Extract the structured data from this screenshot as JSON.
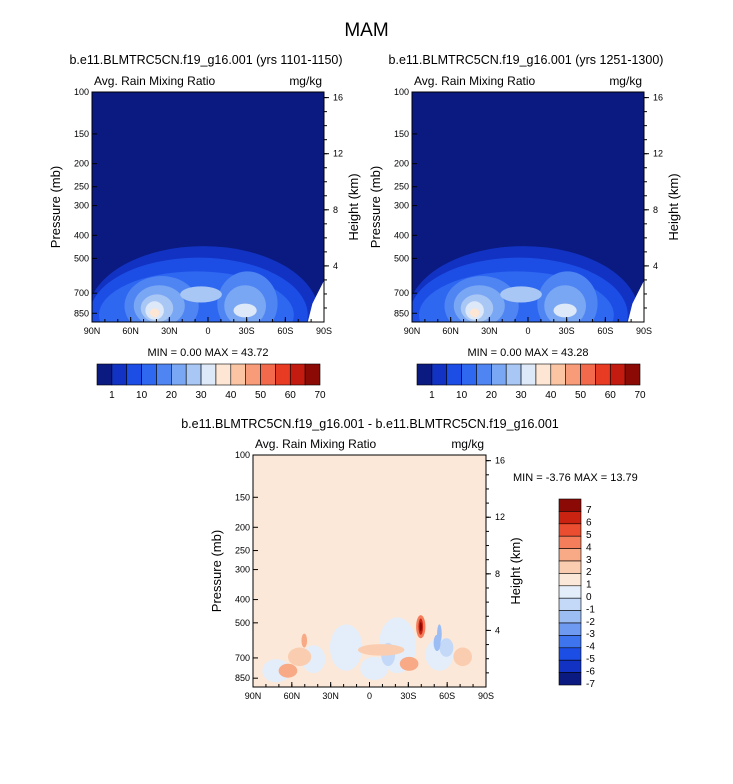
{
  "main_title": "MAM",
  "colors": {
    "abs_palette": [
      "#0a1a80",
      "#1132c2",
      "#1c4ee6",
      "#2e67f0",
      "#4f85f2",
      "#7aa7f3",
      "#a9c7f5",
      "#dde8f8",
      "#fde6d3",
      "#fbc4a2",
      "#f79b78",
      "#f26a4b",
      "#e83b24",
      "#c41b10",
      "#8c0a06"
    ],
    "diff_palette": [
      "#0a1a80",
      "#1132c2",
      "#1c4ee6",
      "#3f74ef",
      "#6f9af2",
      "#9cbcf4",
      "#c4d8f7",
      "#e4eefa",
      "#fce8d8",
      "#fbcdb0",
      "#f8a986",
      "#f47e5c",
      "#ea4d2f",
      "#cb2312",
      "#8c0a06"
    ]
  },
  "chart_data": [
    {
      "type": "heatmap",
      "title": "b.e11.BLMTRC5CN.f19_g16.001 (yrs 1101-1150)",
      "subtitle_left": "Avg. Rain Mixing Ratio",
      "subtitle_right": "mg/kg",
      "ylabel": "Pressure (mb)",
      "y2label": "Height (km)",
      "x_ticks": [
        "90N",
        "60N",
        "30N",
        "0",
        "30S",
        "60S",
        "90S"
      ],
      "y_ticks": [
        "100",
        "150",
        "200",
        "250",
        "300",
        "400",
        "500",
        "700",
        "850"
      ],
      "y2_ticks": [
        "16",
        "12",
        "8",
        "4"
      ],
      "min_label": "MIN =",
      "min_value": "0.00",
      "max_label": "MAX =",
      "max_value": "43.72",
      "colorbar_labels": [
        "1",
        "10",
        "20",
        "30",
        "40",
        "50",
        "60",
        "70"
      ]
    },
    {
      "type": "heatmap",
      "title": "b.e11.BLMTRC5CN.f19_g16.001 (yrs 1251-1300)",
      "subtitle_left": "Avg. Rain Mixing Ratio",
      "subtitle_right": "mg/kg",
      "ylabel": "Pressure (mb)",
      "y2label": "Height (km)",
      "x_ticks": [
        "90N",
        "60N",
        "30N",
        "0",
        "30S",
        "60S",
        "90S"
      ],
      "y_ticks": [
        "100",
        "150",
        "200",
        "250",
        "300",
        "400",
        "500",
        "700",
        "850"
      ],
      "y2_ticks": [
        "16",
        "12",
        "8",
        "4"
      ],
      "min_label": "MIN =",
      "min_value": "0.00",
      "max_label": "MAX =",
      "max_value": "43.28",
      "colorbar_labels": [
        "1",
        "10",
        "20",
        "30",
        "40",
        "50",
        "60",
        "70"
      ]
    },
    {
      "type": "heatmap",
      "title": "b.e11.BLMTRC5CN.f19_g16.001 - b.e11.BLMTRC5CN.f19_g16.001",
      "subtitle_left": "Avg. Rain Mixing Ratio",
      "subtitle_right": "mg/kg",
      "ylabel": "Pressure (mb)",
      "y2label": "Height (km)",
      "x_ticks": [
        "90N",
        "60N",
        "30N",
        "0",
        "30S",
        "60S",
        "90S"
      ],
      "y_ticks": [
        "100",
        "150",
        "200",
        "250",
        "300",
        "400",
        "500",
        "700",
        "850"
      ],
      "y2_ticks": [
        "16",
        "12",
        "8",
        "4"
      ],
      "min_label": "MIN =",
      "min_value": "-3.76",
      "max_label": "MAX =",
      "max_value": "13.79",
      "colorbar_labels": [
        "7",
        "6",
        "5",
        "4",
        "3",
        "2",
        "1",
        "0",
        "-1",
        "-2",
        "-3",
        "-4",
        "-5",
        "-6",
        "-7"
      ]
    }
  ]
}
